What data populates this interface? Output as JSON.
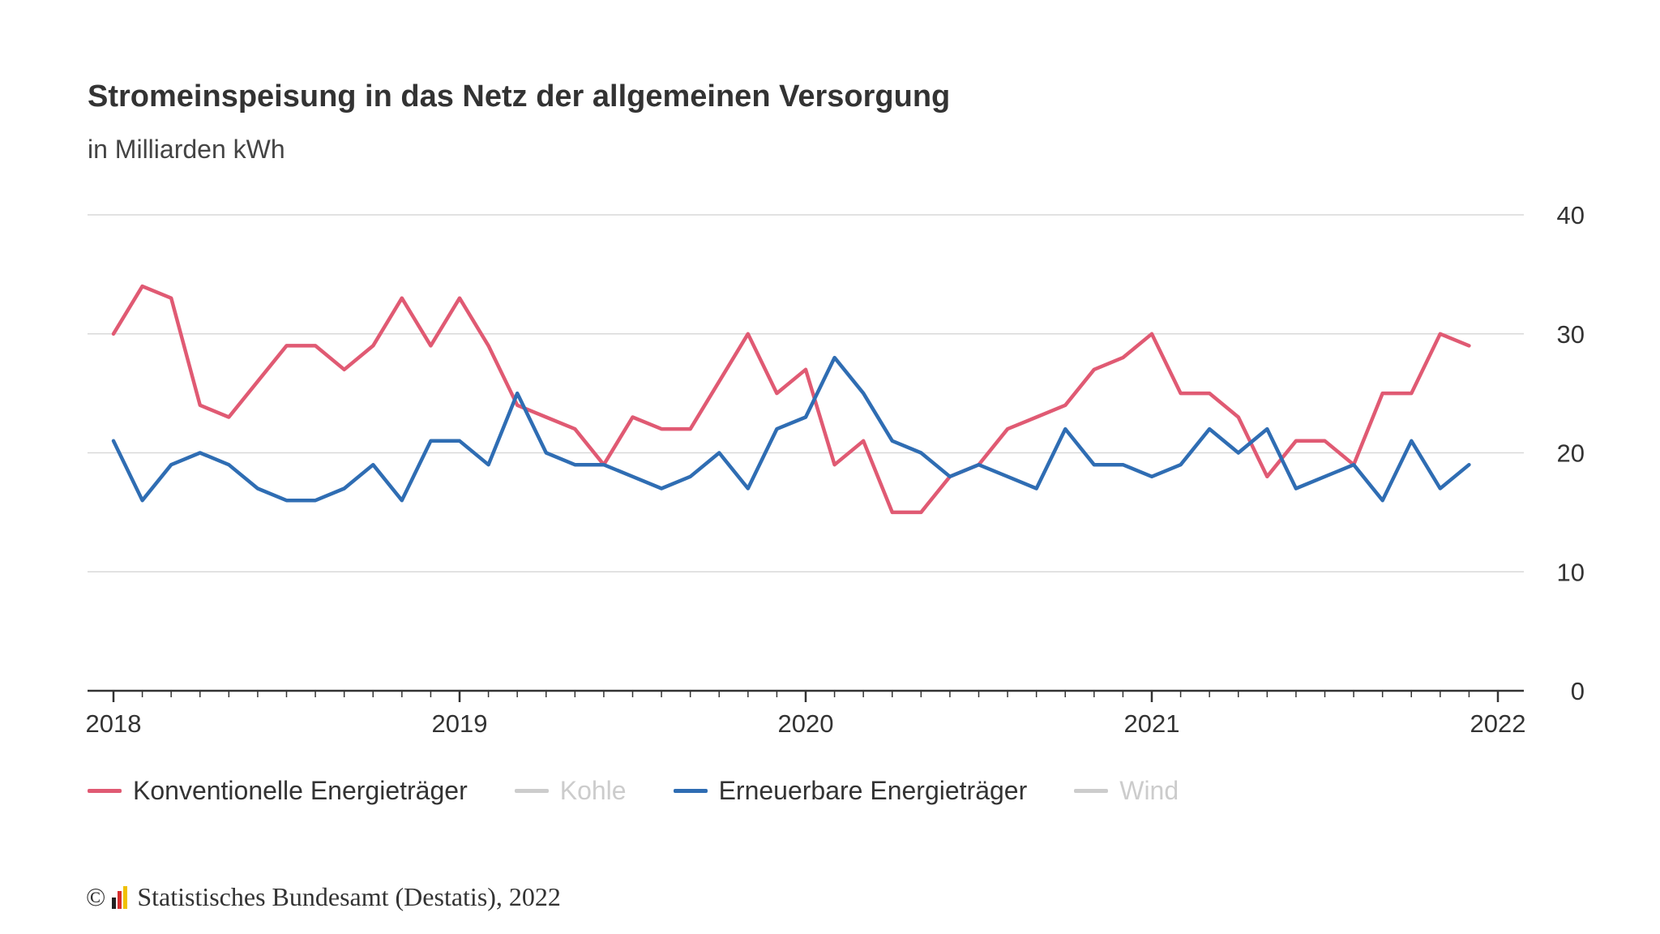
{
  "title": "Stromeinspeisung in das Netz der allgemeinen Versorgung",
  "subtitle": "in Milliarden kWh",
  "colors": {
    "konventionell": "#e05a73",
    "erneuerbar": "#2f6db3",
    "inactive": "#cccccc",
    "grid": "#d9d9d9",
    "axis": "#333333"
  },
  "legend": [
    {
      "label": "Konventionelle Energieträger",
      "color": "#e05a73",
      "active": true
    },
    {
      "label": "Kohle",
      "color": "#cccccc",
      "active": false
    },
    {
      "label": "Erneuerbare Energieträger",
      "color": "#2f6db3",
      "active": true
    },
    {
      "label": "Wind",
      "color": "#cccccc",
      "active": false
    }
  ],
  "footer": {
    "copyright": "©",
    "source": "Statistisches Bundesamt (Destatis), 2022"
  },
  "chart_data": {
    "type": "line",
    "x_labels": [
      "2018",
      "2019",
      "2020",
      "2021",
      "2022"
    ],
    "x_start": "2018-01",
    "x_end": "2022-01",
    "y_ticks": [
      0,
      10,
      20,
      30,
      40
    ],
    "ylim": [
      0,
      40
    ],
    "y_axis_side": "right",
    "grid": true,
    "legend_position": "bottom",
    "series": [
      {
        "name": "Konventionelle Energieträger",
        "color": "#e05a73",
        "values": [
          30,
          34,
          33,
          24,
          23,
          26,
          29,
          29,
          27,
          29,
          33,
          29,
          33,
          29,
          24,
          23,
          22,
          19,
          23,
          22,
          22,
          26,
          30,
          25,
          27,
          19,
          21,
          15,
          15,
          18,
          19,
          22,
          23,
          24,
          27,
          28,
          30,
          25,
          25,
          23,
          18,
          21,
          21,
          19,
          25,
          25,
          30,
          29
        ]
      },
      {
        "name": "Erneuerbare Energieträger",
        "color": "#2f6db3",
        "values": [
          21,
          16,
          19,
          20,
          19,
          17,
          16,
          16,
          17,
          19,
          16,
          21,
          21,
          19,
          25,
          20,
          19,
          19,
          18,
          17,
          18,
          20,
          17,
          22,
          23,
          28,
          25,
          21,
          20,
          18,
          19,
          18,
          17,
          22,
          19,
          19,
          18,
          19,
          22,
          20,
          22,
          17,
          18,
          19,
          16,
          21,
          17,
          19
        ]
      }
    ]
  }
}
